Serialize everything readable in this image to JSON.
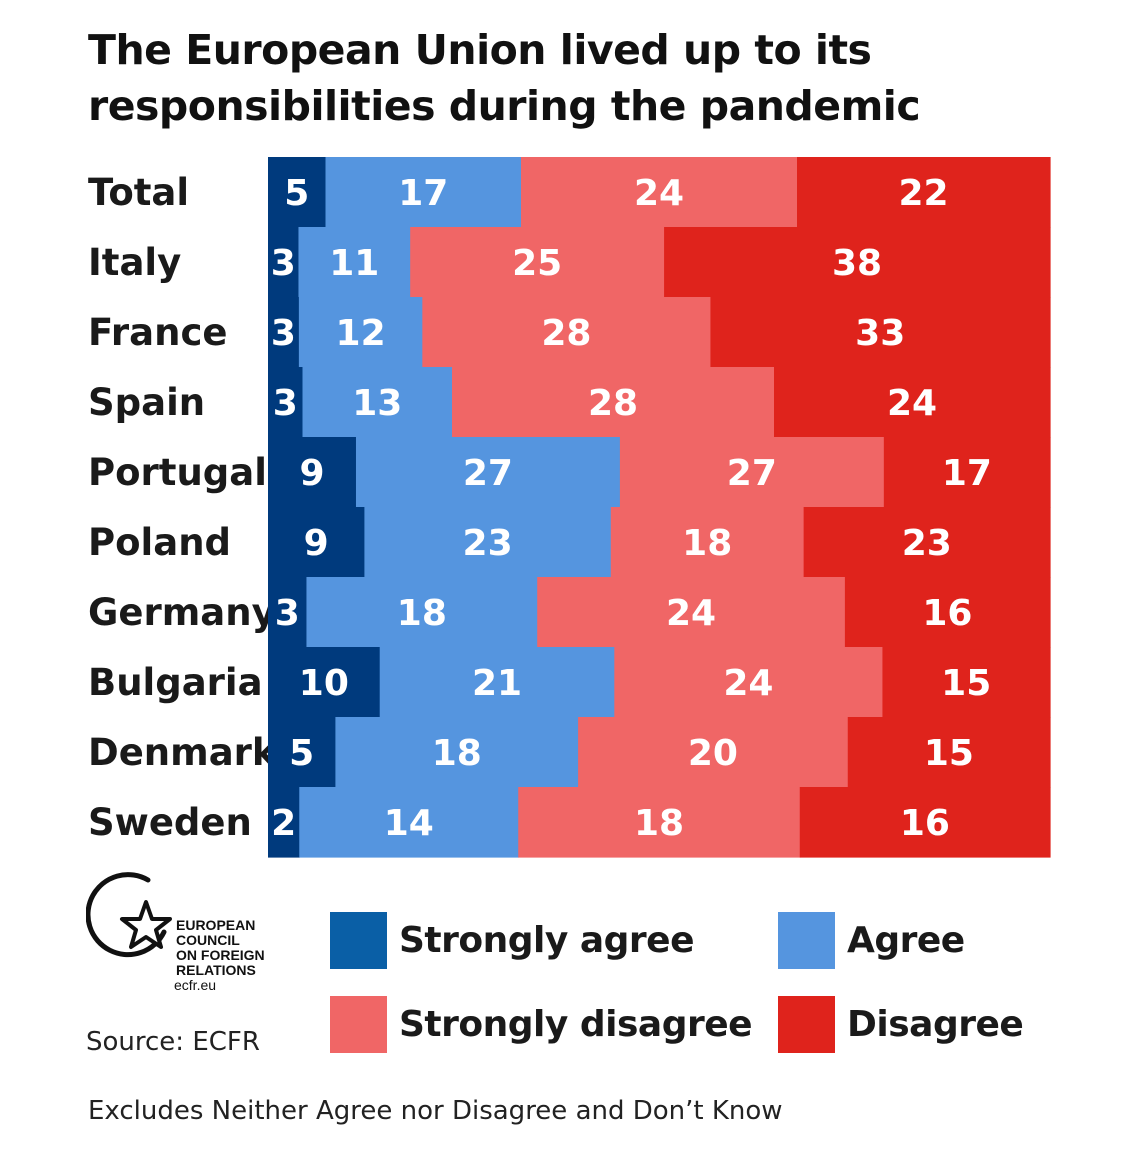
{
  "chart_data": {
    "type": "bar",
    "orientation": "horizontal",
    "stacked": true,
    "title": "The European Union lived up to its responsibilities during the pandemic",
    "categories": [
      "Total",
      "Italy",
      "France",
      "Spain",
      "Portugal",
      "Poland",
      "Germany",
      "Bulgaria",
      "Denmark",
      "Sweden"
    ],
    "series": [
      {
        "name": "Strongly agree",
        "color": "#003a7d",
        "values": [
          5,
          3,
          3,
          3,
          9,
          9,
          3,
          10,
          5,
          2
        ]
      },
      {
        "name": "Agree",
        "color": "#5595df",
        "values": [
          17,
          11,
          12,
          13,
          27,
          23,
          18,
          21,
          18,
          14
        ]
      },
      {
        "name": "Strongly disagree",
        "color": "#f06666",
        "values": [
          24,
          25,
          28,
          28,
          27,
          18,
          24,
          24,
          20,
          18
        ]
      },
      {
        "name": "Disagree",
        "color": "#df231c",
        "values": [
          22,
          38,
          33,
          24,
          17,
          23,
          16,
          15,
          15,
          16
        ]
      }
    ],
    "grid": false,
    "legend": "bottom"
  },
  "legend": {
    "items": [
      {
        "label": "Strongly agree",
        "color": "#0a5fa6"
      },
      {
        "label": "Agree",
        "color": "#5595df"
      },
      {
        "label": "Strongly disagree",
        "color": "#f06666"
      },
      {
        "label": "Disagree",
        "color": "#df231c"
      }
    ]
  },
  "logo": {
    "lines": [
      "EUROPEAN",
      "COUNCIL",
      "ON FOREIGN",
      "RELATIONS"
    ],
    "url": "ecfr.eu",
    "icon": "star-circle-icon"
  },
  "source": "Source: ECFR",
  "footnote": "Excludes Neither Agree nor Disagree and Don’t Know"
}
